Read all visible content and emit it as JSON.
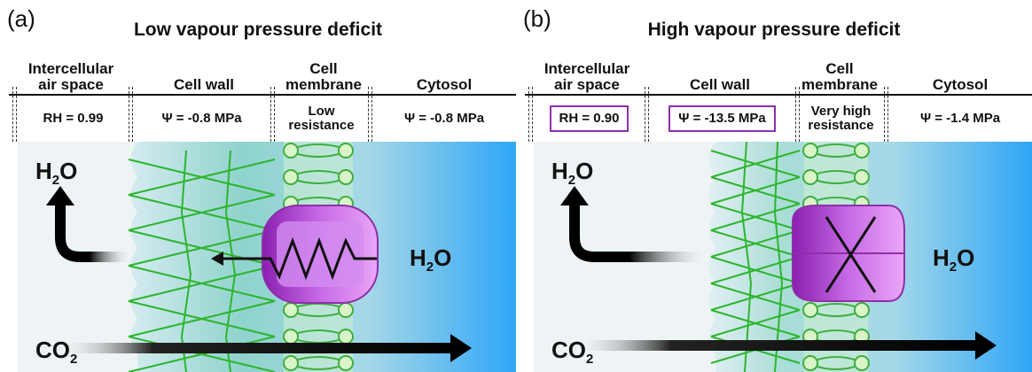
{
  "panels": [
    {
      "label": "(a)",
      "title": "Low vapour pressure deficit",
      "columns": [
        "Intercellular\nair space",
        "Cell wall",
        "Cell\nmembrane",
        "Cytosol"
      ],
      "values": [
        "RH = 0.99",
        "Ψ = -0.8 MPa",
        "Low\nresistance",
        "Ψ = -0.8 MPa"
      ],
      "highlighted": [
        false,
        false,
        false,
        false
      ],
      "molecules": {
        "water_left": "H",
        "water_sub": "2",
        "water_o": "O",
        "water_right": "H",
        "water_right_sub": "2",
        "water_right_o": "O",
        "co2": "CO",
        "co2_sub": "2"
      },
      "channel_state": "open"
    },
    {
      "label": "(b)",
      "title": "High vapour pressure deficit",
      "columns": [
        "Intercellular\nair space",
        "Cell wall",
        "Cell\nmembrane",
        "Cytosol"
      ],
      "values": [
        "RH = 0.90",
        "Ψ = -13.5 MPa",
        "Very high\nresistance",
        "Ψ = -1.4 MPa"
      ],
      "highlighted": [
        true,
        true,
        false,
        false
      ],
      "molecules": {
        "water_left": "H",
        "water_sub": "2",
        "water_o": "O",
        "water_right": "H",
        "water_right_sub": "2",
        "water_right_o": "O",
        "co2": "CO",
        "co2_sub": "2"
      },
      "channel_state": "blocked"
    }
  ],
  "colors": {
    "highlight": "#8e2fa8",
    "cell_wall_lines": "#2db52d",
    "membrane": "#3fae3f",
    "channel": "#b34fd6",
    "cytosol": "#35a8f5"
  }
}
